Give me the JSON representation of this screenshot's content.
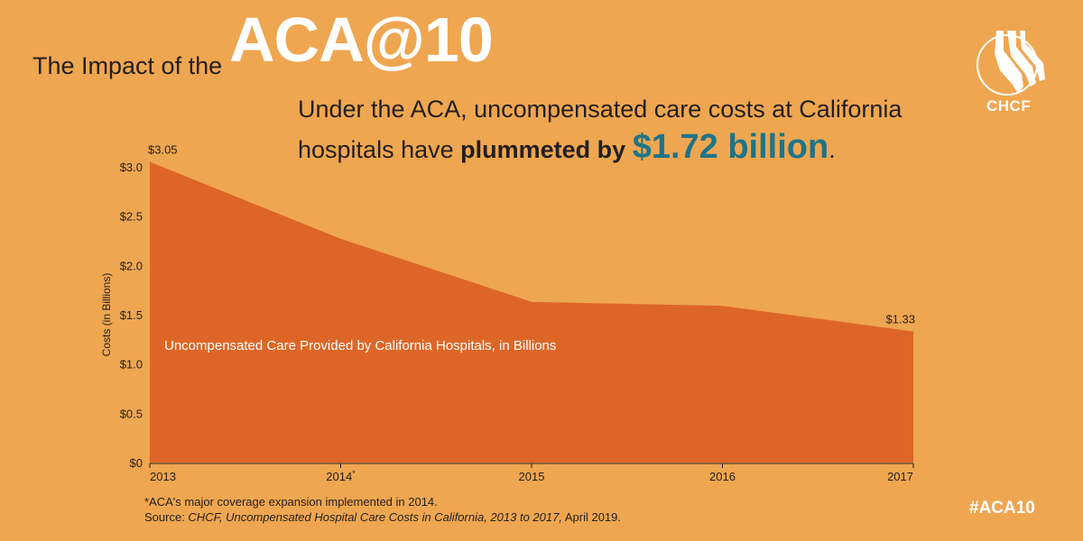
{
  "header": {
    "pre_title": "The Impact of the",
    "brand_title": "ACA@10"
  },
  "headline": {
    "part1": "Under the ACA, uncompensated care costs at California hospitals have",
    "bold": "plummeted by",
    "amount": "$1.72 billion",
    "end": "."
  },
  "logo": {
    "text": "CHCF"
  },
  "hashtag": "#ACA10",
  "footnote": {
    "note": "*ACA's major coverage expansion implemented in 2014.",
    "source_prefix": "Source: ",
    "source_title": "CHCF, Uncompensated Hospital Care Costs in California, 2013 to 2017,",
    "source_suffix": " April 2019."
  },
  "colors": {
    "background": "#EFA650",
    "area": "#DD6627",
    "amount_text": "#1f7488"
  },
  "chart_data": {
    "type": "area",
    "x": [
      "2013",
      "2014*",
      "2015",
      "2016",
      "2017"
    ],
    "values": [
      3.05,
      2.27,
      1.63,
      1.59,
      1.33
    ],
    "series": [
      {
        "name": "Uncompensated Care Provided by California Hospitals, in Billions",
        "values": [
          3.05,
          2.27,
          1.63,
          1.59,
          1.33
        ]
      }
    ],
    "ylabel": "Costs (in Billions)",
    "xlabel": "",
    "ylim": [
      0,
      3.0
    ],
    "yticks": [
      0,
      0.5,
      1.0,
      1.5,
      2.0,
      2.5,
      3.0
    ],
    "ytick_labels": [
      "$0",
      "$0.5",
      "$1.0",
      "$1.5",
      "$2.0",
      "$2.5",
      "$3.0"
    ],
    "data_labels": [
      {
        "index": 0,
        "text": "$3.05"
      },
      {
        "index": 4,
        "text": "$1.33"
      }
    ],
    "grid": false,
    "legend": "inside-area"
  }
}
